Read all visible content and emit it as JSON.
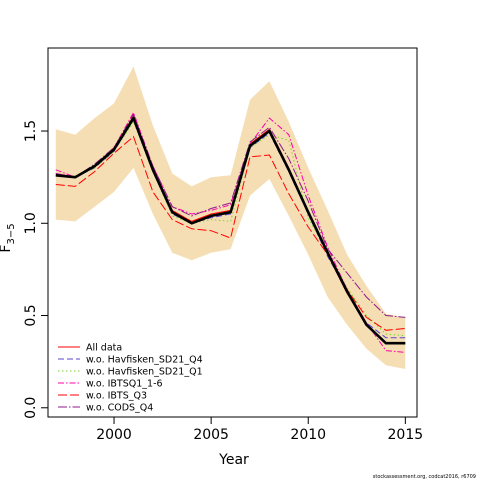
{
  "chart_data": {
    "type": "line",
    "xlabel": "Year",
    "ylabel": {
      "base": "F",
      "subscript": "3−5"
    },
    "xlim": [
      1996.6,
      2015.6
    ],
    "ylim": [
      -0.05,
      1.95
    ],
    "xticks": [
      "2000",
      "2005",
      "2010",
      "2015"
    ],
    "xtick_values": [
      2000,
      2005,
      2010,
      2015
    ],
    "yticks": [
      "0.0",
      "0.5",
      "1.0",
      "1.5"
    ],
    "ytick_values": [
      0.0,
      0.5,
      1.0,
      1.5
    ],
    "x": [
      1997,
      1998,
      1999,
      2000,
      2001,
      2002,
      2003,
      2004,
      2005,
      2006,
      2007,
      2008,
      2009,
      2010,
      2011,
      2012,
      2013,
      2014,
      2015
    ],
    "band": {
      "color": "#f5deb3",
      "lower": [
        1.02,
        1.01,
        1.09,
        1.17,
        1.3,
        1.05,
        0.84,
        0.8,
        0.84,
        0.86,
        1.15,
        1.24,
        1.04,
        0.83,
        0.6,
        0.45,
        0.32,
        0.23,
        0.21
      ],
      "upper": [
        1.51,
        1.48,
        1.57,
        1.65,
        1.85,
        1.53,
        1.27,
        1.2,
        1.25,
        1.26,
        1.67,
        1.77,
        1.55,
        1.3,
        1.07,
        0.83,
        0.66,
        0.51,
        0.49
      ]
    },
    "main": {
      "color": "#000000",
      "values": [
        1.26,
        1.25,
        1.31,
        1.4,
        1.57,
        1.29,
        1.06,
        1.0,
        1.04,
        1.06,
        1.42,
        1.5,
        1.29,
        1.06,
        0.84,
        0.63,
        0.45,
        0.35,
        0.35
      ]
    },
    "series": [
      {
        "name": "All data",
        "color": "#ff0000",
        "dash": "solid",
        "values": [
          1.27,
          1.25,
          1.31,
          1.41,
          1.58,
          1.3,
          1.07,
          1.01,
          1.05,
          1.07,
          1.43,
          1.51,
          1.3,
          1.06,
          0.83,
          0.62,
          0.45,
          0.35,
          0.35
        ]
      },
      {
        "name": "w.o. Havfisken_SD21_Q4",
        "color": "#5b45ce",
        "dash": "6,3",
        "values": [
          1.26,
          1.25,
          1.3,
          1.39,
          1.56,
          1.28,
          1.05,
          1.0,
          1.03,
          1.05,
          1.41,
          1.49,
          1.28,
          1.05,
          0.82,
          0.63,
          0.46,
          0.38,
          0.38
        ]
      },
      {
        "name": "w.o. Havfisken_SD21_Q1",
        "color": "#7fd430",
        "dash": "1.5,2.5",
        "values": [
          1.26,
          1.25,
          1.3,
          1.39,
          1.55,
          1.28,
          1.04,
          1.0,
          1.02,
          1.01,
          1.41,
          1.48,
          1.45,
          1.03,
          0.84,
          0.65,
          0.5,
          0.4,
          0.39
        ]
      },
      {
        "name": "w.o. IBTSQ1_1-6",
        "color": "#ff00aa",
        "dash": "6,2,1.5,2",
        "values": [
          1.29,
          1.25,
          1.31,
          1.41,
          1.6,
          1.31,
          1.09,
          1.05,
          1.07,
          1.1,
          1.43,
          1.57,
          1.48,
          1.15,
          0.87,
          0.64,
          0.46,
          0.31,
          0.3
        ]
      },
      {
        "name": "w.o. IBTS_Q3",
        "color": "#ff0000",
        "dash": "9,3",
        "values": [
          1.21,
          1.2,
          1.28,
          1.38,
          1.47,
          1.17,
          1.02,
          0.97,
          0.96,
          0.92,
          1.36,
          1.37,
          1.16,
          0.98,
          0.83,
          0.64,
          0.49,
          0.42,
          0.43
        ]
      },
      {
        "name": "w.o. CODS_Q4",
        "color": "#8b1a8b",
        "dash": "9,2,1.5,2",
        "values": [
          1.27,
          1.25,
          1.32,
          1.41,
          1.59,
          1.31,
          1.09,
          1.04,
          1.08,
          1.11,
          1.44,
          1.52,
          1.35,
          1.12,
          0.86,
          0.73,
          0.6,
          0.5,
          0.49
        ]
      }
    ],
    "legend_position": "bottom-left",
    "credit": "stockassessment.org, codcat2016, r6709"
  }
}
